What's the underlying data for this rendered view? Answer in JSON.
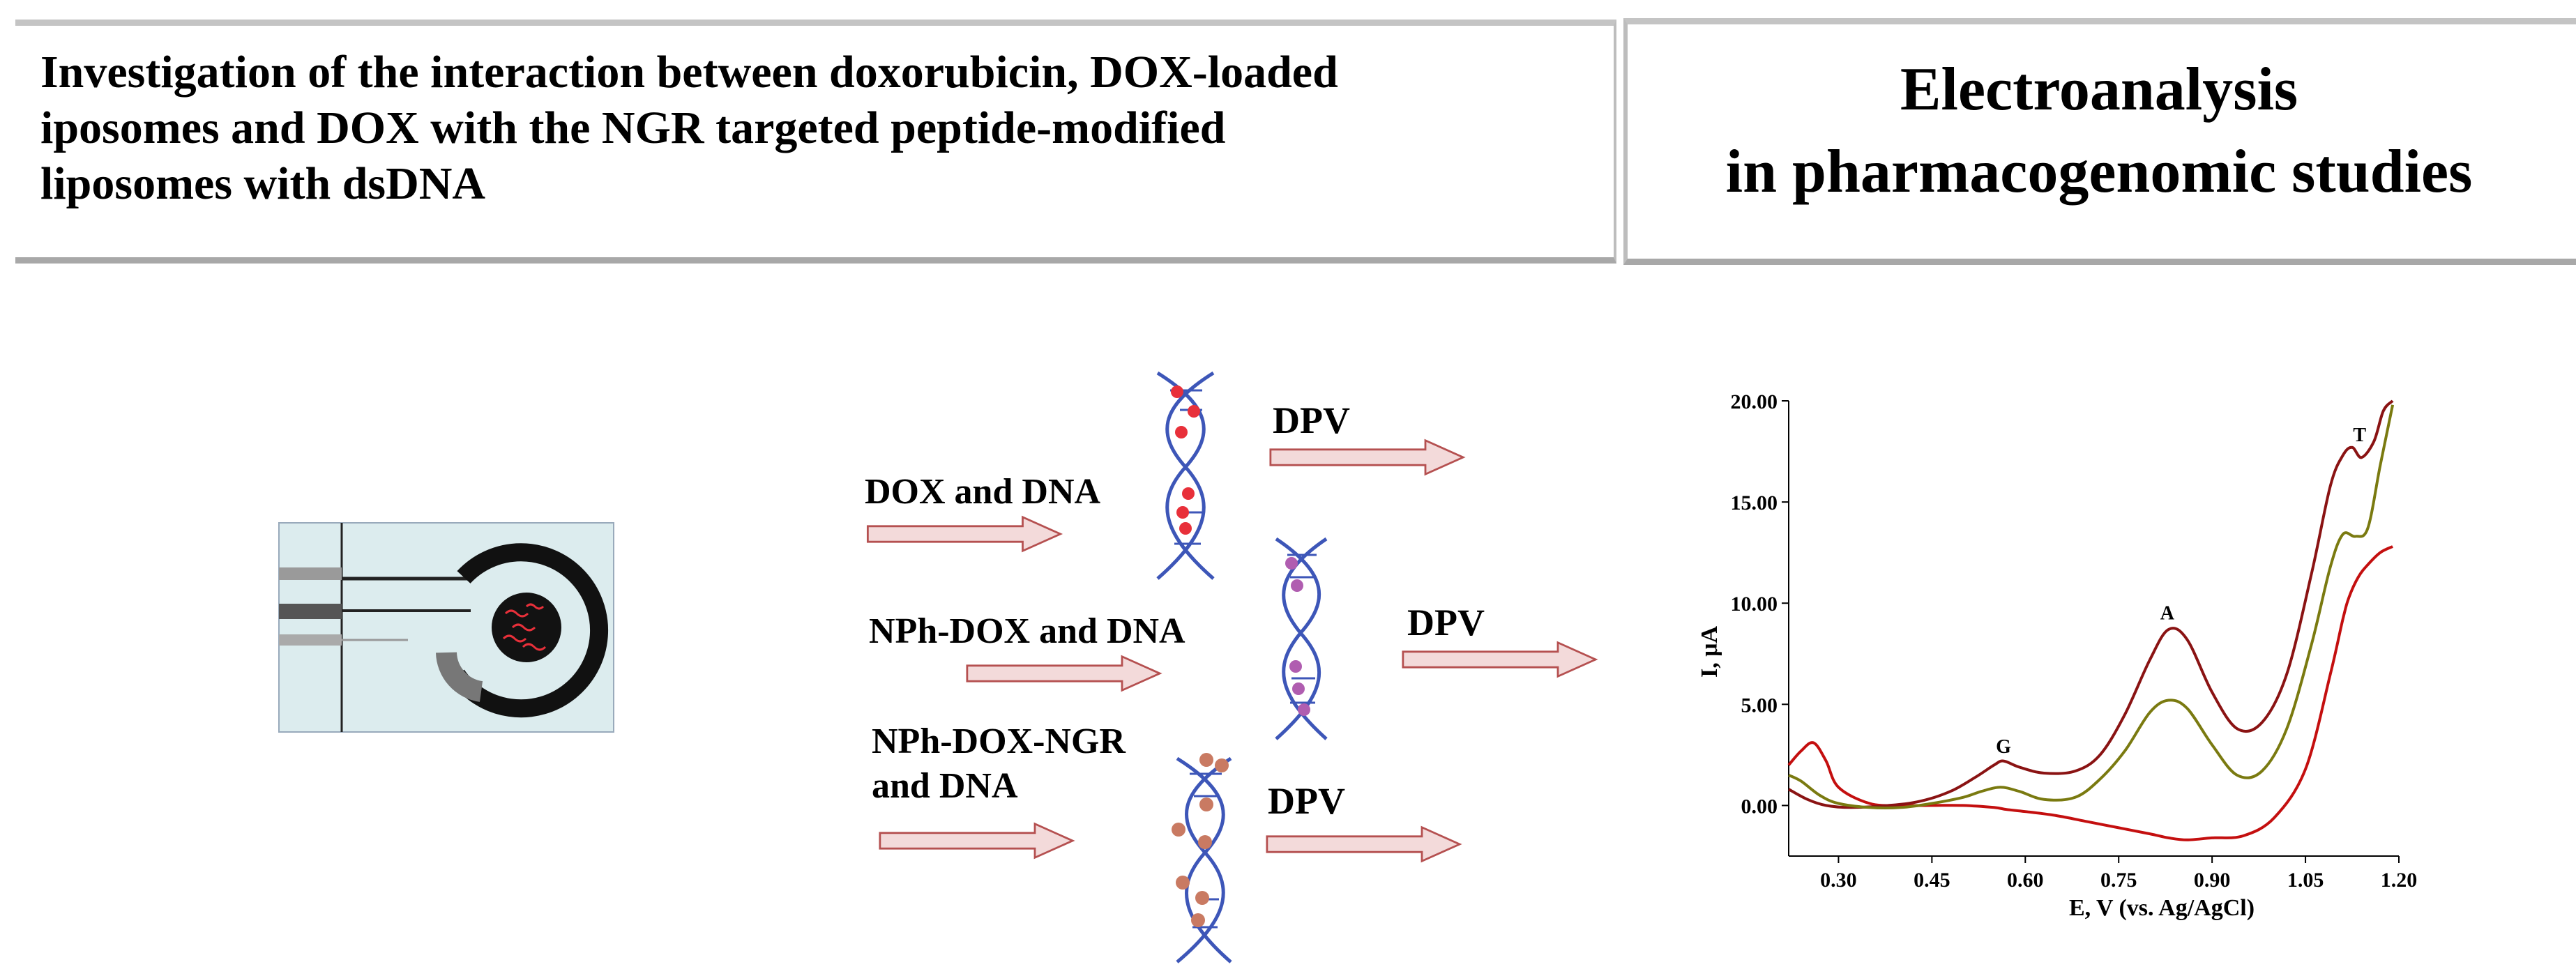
{
  "header": {
    "title_lines": [
      "Investigation of the interaction between doxorubicin,   DOX-loaded",
      "iposomes and DOX with the NGR targeted peptide-modified",
      "liposomes with dsDNA"
    ],
    "side_title_lines": [
      "Electroanalysis",
      "in pharmacogenomic studies"
    ]
  },
  "diagram": {
    "labels": {
      "dox": "DOX and DNA",
      "nph_dox": "NPh-DOX and DNA",
      "nph_dox_ngr_1": "NPh-DOX-NGR",
      "nph_dox_ngr_2": "and DNA"
    },
    "dpv_label": "DPV",
    "colors": {
      "arrow_fill": "#f3dada",
      "arrow_stroke": "#b55050",
      "dna_strand": "#3d56b8",
      "dox_dot": "#e8303a",
      "nph_dot": "#b05db0",
      "ngr_dot": "#c97a62"
    }
  },
  "chart_data": {
    "type": "line",
    "xlabel": "E, V (vs. Ag/AgCl)",
    "ylabel": "I, μA",
    "xlim": [
      0.22,
      1.2
    ],
    "ylim": [
      -2.5,
      20
    ],
    "xticks": [
      "0.30",
      "0.45",
      "0.60",
      "0.75",
      "0.90",
      "1.05",
      "1.20"
    ],
    "yticks": [
      "0.00",
      "5.00",
      "10.00",
      "15.00",
      "20.00"
    ],
    "annotations": [
      {
        "text": "G",
        "x": 0.565,
        "y": 2.6
      },
      {
        "text": "A",
        "x": 0.828,
        "y": 9.2
      },
      {
        "text": "T",
        "x": 1.137,
        "y": 18.0
      }
    ],
    "series": [
      {
        "color": "#c40f0f",
        "x": [
          0.22,
          0.24,
          0.26,
          0.28,
          0.3,
          0.35,
          0.4,
          0.45,
          0.5,
          0.55,
          0.57,
          0.6,
          0.65,
          0.7,
          0.75,
          0.8,
          0.83,
          0.86,
          0.9,
          0.95,
          1.0,
          1.05,
          1.09,
          1.11,
          1.12,
          1.135,
          1.15,
          1.17,
          1.19
        ],
        "y": [
          2.0,
          2.7,
          3.1,
          2.2,
          0.9,
          0.1,
          0.0,
          0.0,
          0.0,
          -0.1,
          -0.2,
          -0.3,
          -0.5,
          -0.8,
          -1.1,
          -1.4,
          -1.6,
          -1.7,
          -1.6,
          -1.5,
          -0.6,
          1.8,
          6.5,
          9.2,
          10.3,
          11.3,
          11.9,
          12.5,
          12.8
        ]
      },
      {
        "color": "#8a1313",
        "x": [
          0.22,
          0.25,
          0.28,
          0.32,
          0.38,
          0.43,
          0.48,
          0.52,
          0.55,
          0.565,
          0.59,
          0.63,
          0.68,
          0.72,
          0.76,
          0.8,
          0.83,
          0.86,
          0.9,
          0.94,
          0.98,
          1.02,
          1.06,
          1.09,
          1.11,
          1.125,
          1.14,
          1.16,
          1.175,
          1.19
        ],
        "y": [
          0.8,
          0.3,
          0.0,
          -0.1,
          0.0,
          0.2,
          0.7,
          1.4,
          2.0,
          2.2,
          1.9,
          1.6,
          1.7,
          2.5,
          4.5,
          7.2,
          8.7,
          8.2,
          5.6,
          3.8,
          4.1,
          6.5,
          11.5,
          15.8,
          17.3,
          17.7,
          17.2,
          18.0,
          19.5,
          20.0
        ]
      },
      {
        "color": "#7a7a10",
        "x": [
          0.22,
          0.24,
          0.27,
          0.3,
          0.35,
          0.4,
          0.45,
          0.5,
          0.53,
          0.56,
          0.59,
          0.63,
          0.68,
          0.72,
          0.76,
          0.8,
          0.83,
          0.86,
          0.9,
          0.94,
          0.98,
          1.02,
          1.06,
          1.09,
          1.11,
          1.13,
          1.15,
          1.17,
          1.19
        ],
        "y": [
          1.5,
          1.2,
          0.5,
          0.1,
          -0.1,
          -0.1,
          0.1,
          0.4,
          0.7,
          0.9,
          0.7,
          0.3,
          0.4,
          1.3,
          2.7,
          4.6,
          5.2,
          4.8,
          3.0,
          1.5,
          1.7,
          3.8,
          8.0,
          11.8,
          13.4,
          13.3,
          13.7,
          16.8,
          19.8
        ]
      }
    ]
  }
}
